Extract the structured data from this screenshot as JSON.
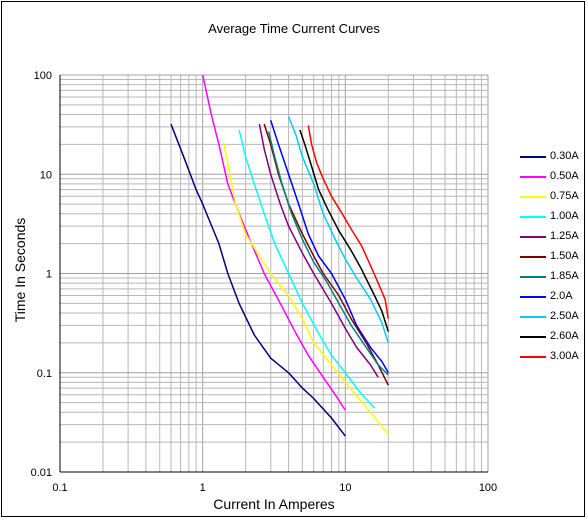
{
  "chart_data": {
    "type": "line",
    "title": "Average Time Current Curves",
    "xlabel": "Current In Amperes",
    "ylabel": "Time In Seconds",
    "x_scale": "log",
    "y_scale": "log",
    "xlim": [
      0.1,
      100
    ],
    "ylim": [
      0.01,
      100
    ],
    "x_ticks": [
      "0.1",
      "1",
      "10",
      "100"
    ],
    "y_ticks": [
      "0.01",
      "0.1",
      "1",
      "10",
      "100"
    ],
    "grid": true,
    "legend": "right",
    "series": [
      {
        "name": "0.30A",
        "color": "#000080",
        "points": [
          [
            0.6,
            32
          ],
          [
            0.75,
            14
          ],
          [
            0.9,
            7
          ],
          [
            1.0,
            5
          ],
          [
            1.3,
            2
          ],
          [
            1.5,
            1
          ],
          [
            1.8,
            0.5
          ],
          [
            2.3,
            0.24
          ],
          [
            3,
            0.14
          ],
          [
            4,
            0.1
          ],
          [
            5,
            0.07
          ],
          [
            6,
            0.055
          ],
          [
            8,
            0.035
          ],
          [
            10,
            0.023
          ]
        ]
      },
      {
        "name": "0.50A",
        "color": "#ff00ff",
        "points": [
          [
            1.0,
            100
          ],
          [
            1.15,
            40
          ],
          [
            1.3,
            20
          ],
          [
            1.5,
            8
          ],
          [
            1.8,
            4
          ],
          [
            2.2,
            2
          ],
          [
            2.7,
            1
          ],
          [
            3.5,
            0.5
          ],
          [
            4.5,
            0.25
          ],
          [
            5.5,
            0.15
          ],
          [
            7,
            0.09
          ],
          [
            8.5,
            0.06
          ],
          [
            10,
            0.042
          ]
        ]
      },
      {
        "name": "0.75A",
        "color": "#ffff00",
        "points": [
          [
            1.4,
            21
          ],
          [
            1.55,
            10
          ],
          [
            1.7,
            5
          ],
          [
            2,
            2.5
          ],
          [
            2.5,
            1.5
          ],
          [
            3,
            1
          ],
          [
            4,
            0.6
          ],
          [
            5,
            0.35
          ],
          [
            6,
            0.2
          ],
          [
            8,
            0.12
          ],
          [
            10,
            0.08
          ],
          [
            14,
            0.045
          ],
          [
            20,
            0.024
          ]
        ]
      },
      {
        "name": "1.00A",
        "color": "#00ffff",
        "points": [
          [
            1.8,
            28
          ],
          [
            2,
            15
          ],
          [
            2.3,
            8
          ],
          [
            2.7,
            4
          ],
          [
            3.2,
            2
          ],
          [
            4,
            1
          ],
          [
            5,
            0.5
          ],
          [
            6.5,
            0.25
          ],
          [
            8,
            0.15
          ],
          [
            10,
            0.1
          ],
          [
            12.5,
            0.065
          ],
          [
            16,
            0.044
          ]
        ]
      },
      {
        "name": "1.25A",
        "color": "#800080",
        "points": [
          [
            2.5,
            32
          ],
          [
            2.7,
            18
          ],
          [
            3,
            10
          ],
          [
            3.5,
            5
          ],
          [
            4,
            3
          ],
          [
            5,
            1.6
          ],
          [
            6,
            1
          ],
          [
            8,
            0.5
          ],
          [
            10,
            0.28
          ],
          [
            12,
            0.18
          ],
          [
            15,
            0.12
          ],
          [
            17,
            0.09
          ]
        ]
      },
      {
        "name": "1.50A",
        "color": "#800000",
        "points": [
          [
            2.7,
            32
          ],
          [
            3,
            20
          ],
          [
            3.4,
            10
          ],
          [
            4,
            5
          ],
          [
            5,
            2.5
          ],
          [
            6,
            1.5
          ],
          [
            7,
            1
          ],
          [
            9,
            0.6
          ],
          [
            11,
            0.35
          ],
          [
            14,
            0.2
          ],
          [
            17,
            0.12
          ],
          [
            20,
            0.075
          ]
        ]
      },
      {
        "name": "1.85A",
        "color": "#008080",
        "points": [
          [
            2.9,
            27
          ],
          [
            3.2,
            15
          ],
          [
            3.6,
            8
          ],
          [
            4.2,
            4
          ],
          [
            5,
            2.2
          ],
          [
            6,
            1.3
          ],
          [
            7.5,
            0.8
          ],
          [
            9,
            0.5
          ],
          [
            11,
            0.3
          ],
          [
            14,
            0.18
          ],
          [
            17,
            0.12
          ],
          [
            20,
            0.095
          ]
        ]
      },
      {
        "name": "2.0A",
        "color": "#0000ff",
        "points": [
          [
            3,
            35
          ],
          [
            3.4,
            20
          ],
          [
            4,
            10
          ],
          [
            4.7,
            5
          ],
          [
            5.5,
            2.5
          ],
          [
            6.5,
            1.5
          ],
          [
            8,
            1
          ],
          [
            10,
            0.55
          ],
          [
            12,
            0.3
          ],
          [
            15,
            0.18
          ],
          [
            18,
            0.13
          ],
          [
            20,
            0.1
          ]
        ]
      },
      {
        "name": "2.50A",
        "color": "#00ccff",
        "points": [
          [
            4,
            38
          ],
          [
            4.5,
            25
          ],
          [
            5,
            15
          ],
          [
            6,
            8
          ],
          [
            7,
            4
          ],
          [
            8.5,
            2.2
          ],
          [
            10,
            1.4
          ],
          [
            12,
            0.9
          ],
          [
            15,
            0.55
          ],
          [
            18,
            0.32
          ],
          [
            20,
            0.2
          ]
        ]
      },
      {
        "name": "2.60A",
        "color": "#000000",
        "points": [
          [
            4.8,
            28
          ],
          [
            5.2,
            20
          ],
          [
            5.8,
            12
          ],
          [
            6.5,
            7
          ],
          [
            7.5,
            4.5
          ],
          [
            9,
            2.7
          ],
          [
            11,
            1.7
          ],
          [
            13,
            1.1
          ],
          [
            16,
            0.6
          ],
          [
            18,
            0.42
          ],
          [
            20,
            0.26
          ]
        ]
      },
      {
        "name": "3.00A",
        "color": "#ff0000",
        "points": [
          [
            5.5,
            31
          ],
          [
            5.8,
            20
          ],
          [
            6.3,
            13
          ],
          [
            7,
            9
          ],
          [
            8,
            6
          ],
          [
            9.5,
            4
          ],
          [
            11,
            2.8
          ],
          [
            13,
            1.9
          ],
          [
            15,
            1.2
          ],
          [
            17,
            0.8
          ],
          [
            19,
            0.55
          ],
          [
            20,
            0.35
          ]
        ]
      }
    ]
  }
}
